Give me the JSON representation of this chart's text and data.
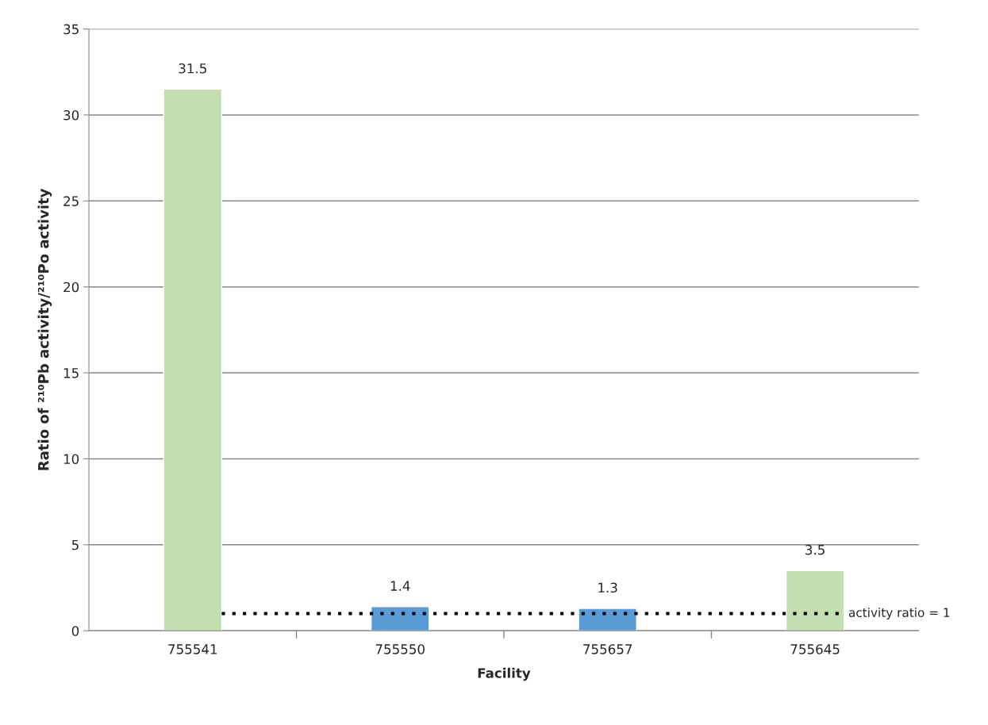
{
  "chart_data": {
    "type": "bar",
    "xlabel": "Facility",
    "ylabel": "Ratio of ²¹⁰Pb activity/²¹⁰Po activity",
    "categories": [
      "755541",
      "755550",
      "755657",
      "755645"
    ],
    "values": [
      31.5,
      1.4,
      1.3,
      3.5
    ],
    "colors": [
      "#c3dfb0",
      "#5b9bd5",
      "#5b9bd5",
      "#c3dfb0"
    ],
    "ylim": [
      0,
      35
    ],
    "yticks": [
      0,
      5,
      10,
      15,
      20,
      25,
      30,
      35
    ],
    "grid": "y",
    "data_labels": true,
    "ref_lines": [
      {
        "axis": "y",
        "value": 1,
        "label": "activity ratio = 1",
        "color": "#000000",
        "line_style": "dotted"
      }
    ]
  }
}
